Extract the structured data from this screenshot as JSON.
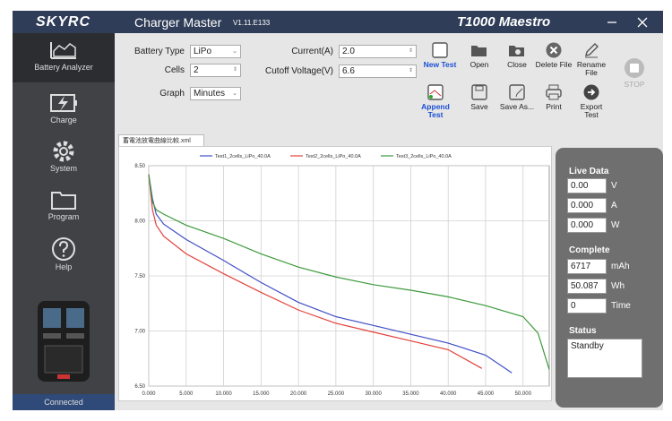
{
  "title_bar": {
    "logo": "SKYRC",
    "app_name": "Charger Master",
    "version": "V1.11.E133",
    "model": "T1000 Maestro"
  },
  "sidebar": {
    "items": [
      "Battery Analyzer",
      "Charge",
      "System",
      "Program",
      "Help"
    ],
    "status": "Connected"
  },
  "settings": {
    "battery_type": {
      "label": "Battery Type",
      "value": "LiPo"
    },
    "cells": {
      "label": "Cells",
      "value": "2"
    },
    "graph": {
      "label": "Graph",
      "value": "Minutes"
    },
    "current": {
      "label": "Current(A)",
      "value": "2.0"
    },
    "cutoff_voltage": {
      "label": "Cutoff Voltage(V)",
      "value": "6.6"
    }
  },
  "toolbar": {
    "buttons": [
      "New Test",
      "Open",
      "Close",
      "Delete File",
      "Rename File",
      "STOP",
      "Append Test",
      "Save",
      "Save As...",
      "Print",
      "Export Test"
    ]
  },
  "tab": "蓄電池放電曲線比較.xml",
  "chart_data": {
    "type": "line",
    "series": [
      {
        "name": "Test1_2cells_LiPo_40.0A",
        "color": "#3f4fc4",
        "x": [
          0,
          0.5,
          1,
          2,
          5,
          10,
          15,
          20,
          25,
          30,
          35,
          40,
          45,
          48.5
        ],
        "values": [
          8.42,
          8.2,
          8.06,
          7.97,
          7.83,
          7.64,
          7.44,
          7.26,
          7.13,
          7.05,
          6.97,
          6.89,
          6.78,
          6.62
        ]
      },
      {
        "name": "Test2_2cells_LiPo_40.0A",
        "color": "#e2413a",
        "x": [
          0,
          0.5,
          1,
          2,
          5,
          10,
          15,
          20,
          25,
          30,
          35,
          40,
          44.5
        ],
        "values": [
          8.42,
          8.1,
          7.96,
          7.86,
          7.7,
          7.52,
          7.35,
          7.19,
          7.07,
          6.99,
          6.91,
          6.83,
          6.66
        ]
      },
      {
        "name": "Test3_2cells_LiPo_40.0A",
        "color": "#3c9a3c",
        "x": [
          0,
          0.5,
          1,
          2,
          5,
          10,
          15,
          20,
          25,
          30,
          35,
          40,
          45,
          50,
          52,
          53.5
        ],
        "values": [
          8.42,
          8.17,
          8.1,
          8.06,
          7.96,
          7.84,
          7.7,
          7.58,
          7.49,
          7.42,
          7.37,
          7.31,
          7.23,
          7.13,
          6.98,
          6.65
        ]
      }
    ],
    "xlim": [
      0,
      53.5
    ],
    "ylim": [
      6.5,
      8.5
    ],
    "xticks": [
      {
        "value": 0,
        "label": "0.000"
      },
      {
        "value": 5,
        "label": "5.000"
      },
      {
        "value": 10,
        "label": "10.000"
      },
      {
        "value": 15,
        "label": "15.000"
      },
      {
        "value": 20,
        "label": "20.000"
      },
      {
        "value": 25,
        "label": "25.000"
      },
      {
        "value": 30,
        "label": "30.000"
      },
      {
        "value": 35,
        "label": "35.000"
      },
      {
        "value": 40,
        "label": "40.000"
      },
      {
        "value": 45,
        "label": "45.000"
      },
      {
        "value": 50,
        "label": "50.000"
      }
    ],
    "yticks": [
      {
        "value": 6.5,
        "label": "6.50"
      },
      {
        "value": 7,
        "label": "7.00"
      },
      {
        "value": 7.5,
        "label": "7.50"
      },
      {
        "value": 8,
        "label": "8.00"
      },
      {
        "value": 8.5,
        "label": "8.50"
      }
    ],
    "grid": true
  },
  "live_data": {
    "title": "Live Data",
    "rows": [
      [
        "0.00",
        "V"
      ],
      [
        "0.000",
        "A"
      ],
      [
        "0.000",
        "W"
      ]
    ]
  },
  "complete": {
    "title": "Complete",
    "rows": [
      [
        "6717",
        "mAh"
      ],
      [
        "50.087",
        "Wh"
      ],
      [
        "0",
        "Time"
      ]
    ]
  },
  "status": {
    "title": "Status",
    "value": "Standby"
  }
}
